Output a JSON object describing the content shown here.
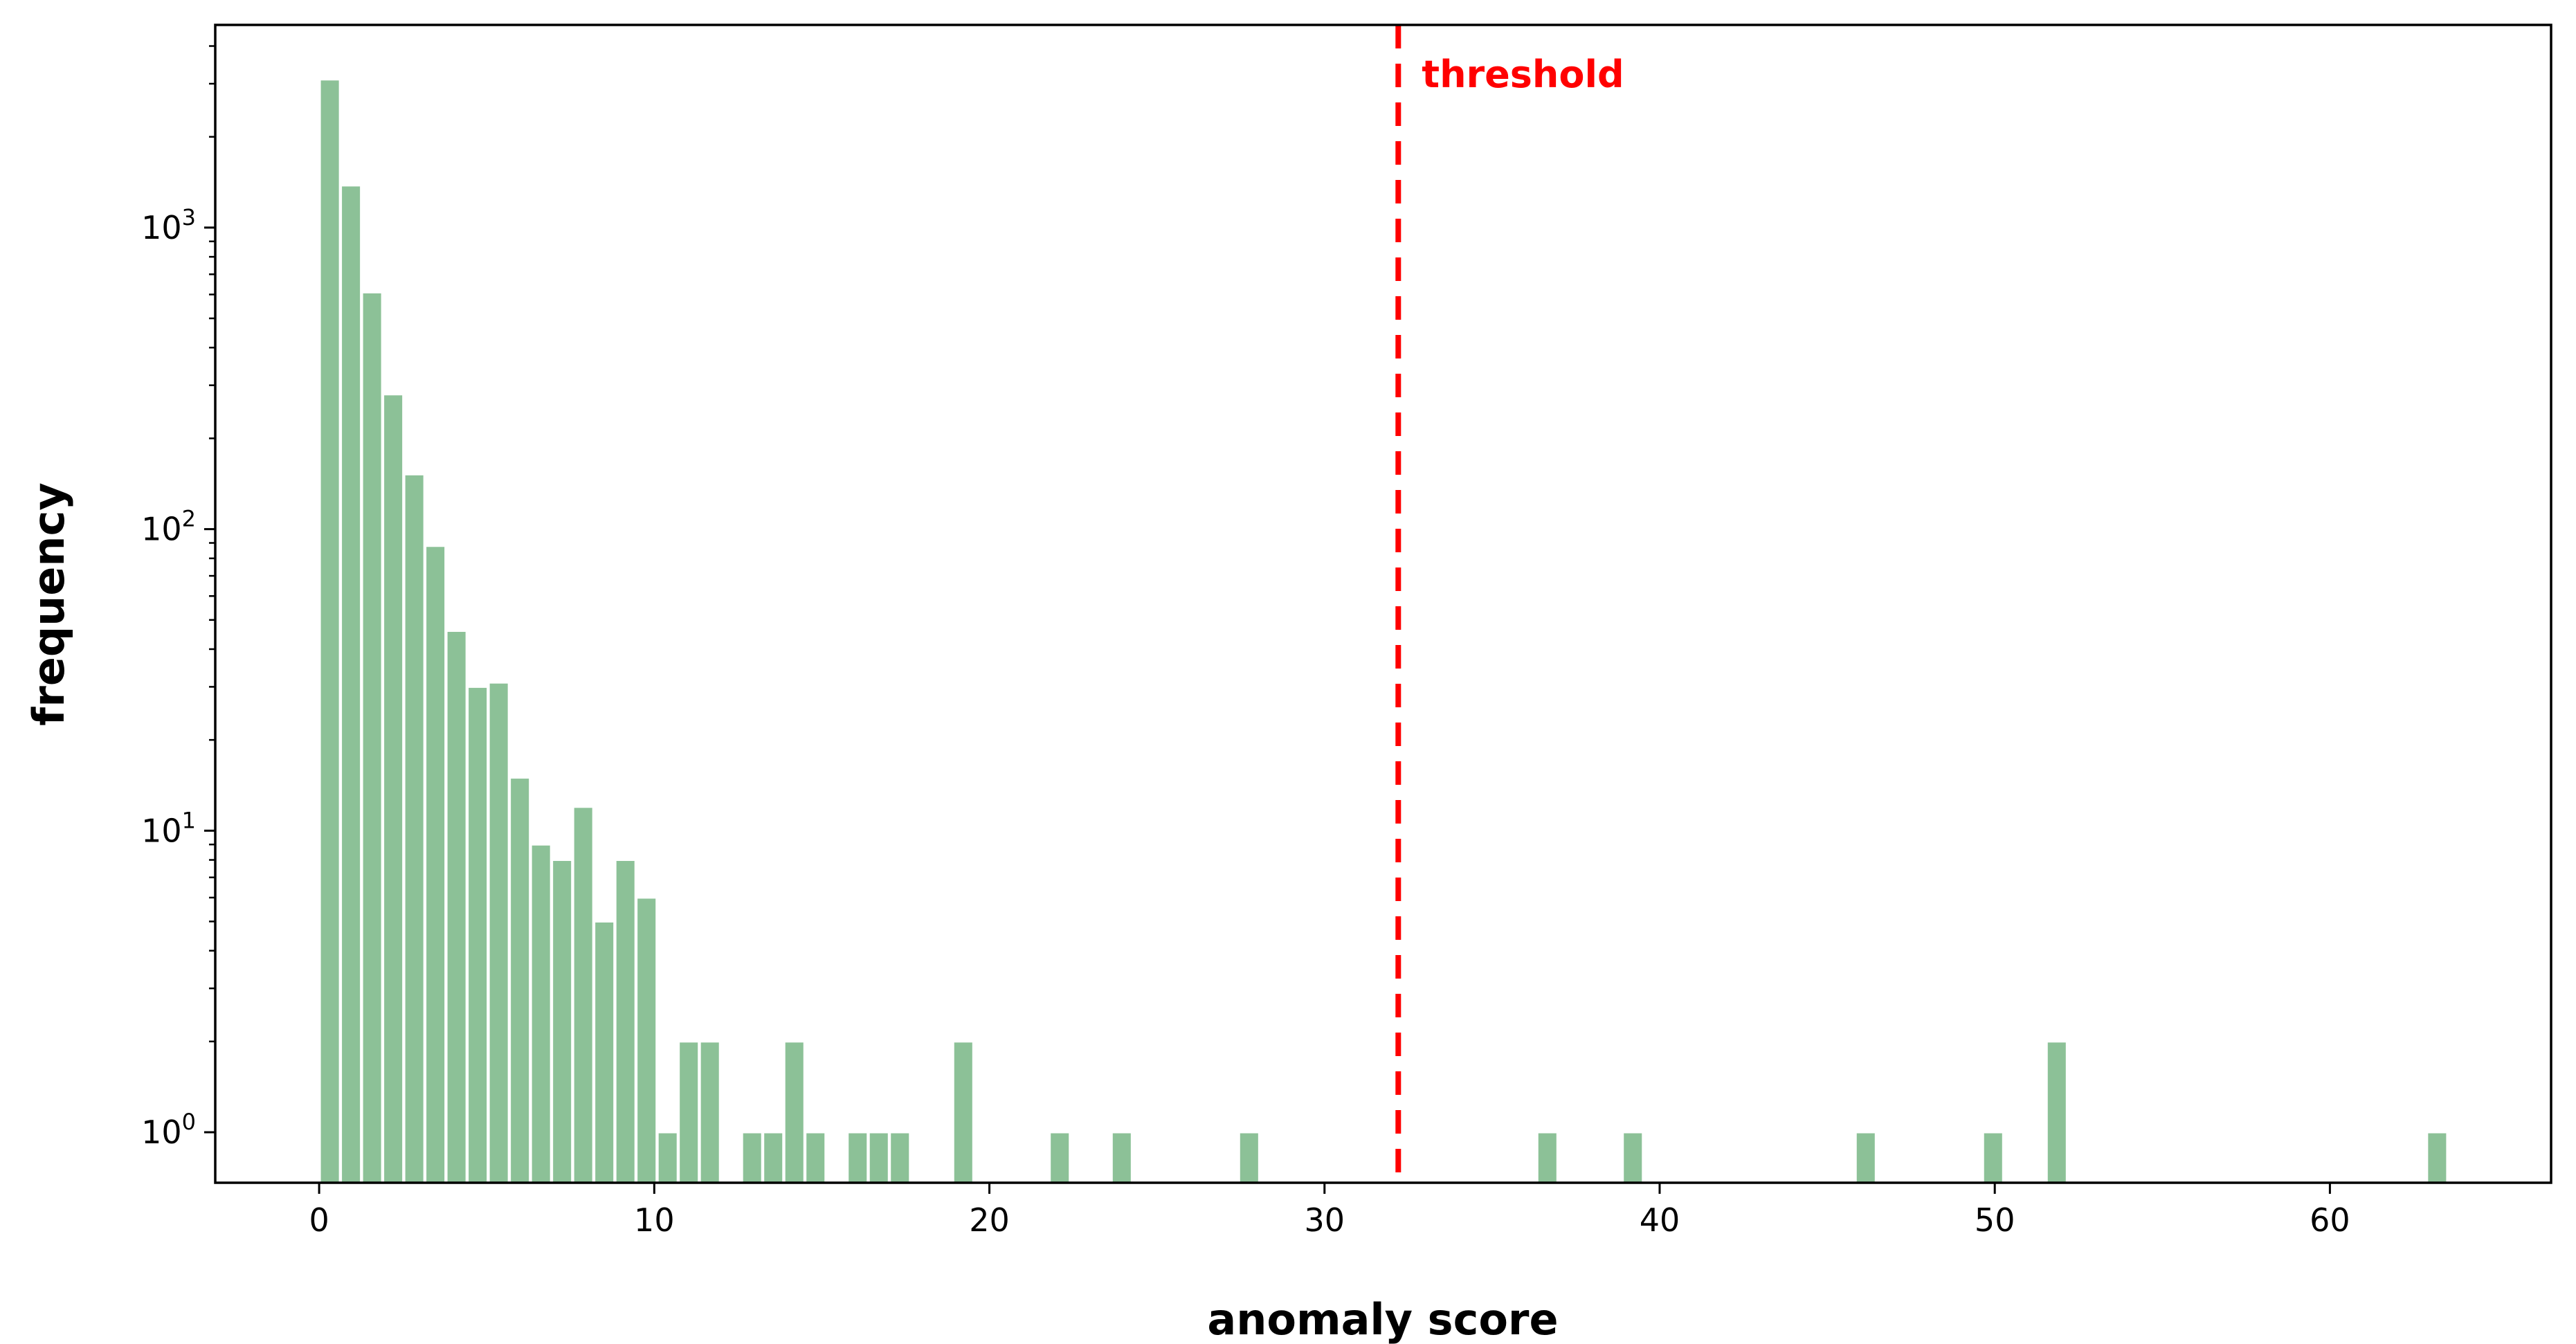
{
  "chart_data": {
    "type": "bar",
    "xlabel": "anomaly score",
    "ylabel": "frequency",
    "xlim": [
      -3.1,
      66.6
    ],
    "ylim": [
      0.68,
      4700
    ],
    "yscale": "log",
    "x_ticks": [
      0,
      10,
      20,
      30,
      40,
      50,
      60
    ],
    "y_ticks": [
      {
        "value": 1,
        "base": "10",
        "exp": "0"
      },
      {
        "value": 10,
        "base": "10",
        "exp": "1"
      },
      {
        "value": 100,
        "base": "10",
        "exp": "2"
      },
      {
        "value": 1000,
        "base": "10",
        "exp": "3"
      }
    ],
    "bar_width": 0.6,
    "bar_color": "#8cc197",
    "bars": [
      {
        "x": 0.32,
        "value": 3100
      },
      {
        "x": 0.95,
        "value": 1380
      },
      {
        "x": 1.58,
        "value": 610
      },
      {
        "x": 2.21,
        "value": 280
      },
      {
        "x": 2.84,
        "value": 152
      },
      {
        "x": 3.47,
        "value": 88
      },
      {
        "x": 4.1,
        "value": 46
      },
      {
        "x": 4.73,
        "value": 30
      },
      {
        "x": 5.36,
        "value": 31
      },
      {
        "x": 5.99,
        "value": 15
      },
      {
        "x": 6.62,
        "value": 9
      },
      {
        "x": 7.25,
        "value": 8
      },
      {
        "x": 7.88,
        "value": 12
      },
      {
        "x": 8.51,
        "value": 5
      },
      {
        "x": 9.14,
        "value": 8
      },
      {
        "x": 9.77,
        "value": 6
      },
      {
        "x": 10.4,
        "value": 1
      },
      {
        "x": 11.03,
        "value": 2
      },
      {
        "x": 11.66,
        "value": 2
      },
      {
        "x": 12.92,
        "value": 1
      },
      {
        "x": 13.55,
        "value": 1
      },
      {
        "x": 14.18,
        "value": 2
      },
      {
        "x": 14.81,
        "value": 1
      },
      {
        "x": 16.07,
        "value": 1
      },
      {
        "x": 16.7,
        "value": 1
      },
      {
        "x": 17.33,
        "value": 1
      },
      {
        "x": 19.22,
        "value": 2
      },
      {
        "x": 22.1,
        "value": 1
      },
      {
        "x": 23.95,
        "value": 1
      },
      {
        "x": 27.75,
        "value": 1
      },
      {
        "x": 36.65,
        "value": 1
      },
      {
        "x": 39.2,
        "value": 1
      },
      {
        "x": 46.15,
        "value": 1
      },
      {
        "x": 49.95,
        "value": 1
      },
      {
        "x": 51.85,
        "value": 2
      },
      {
        "x": 63.2,
        "value": 1
      }
    ],
    "threshold": {
      "x": 32.2,
      "label": "threshold",
      "color": "#ff0000"
    }
  }
}
